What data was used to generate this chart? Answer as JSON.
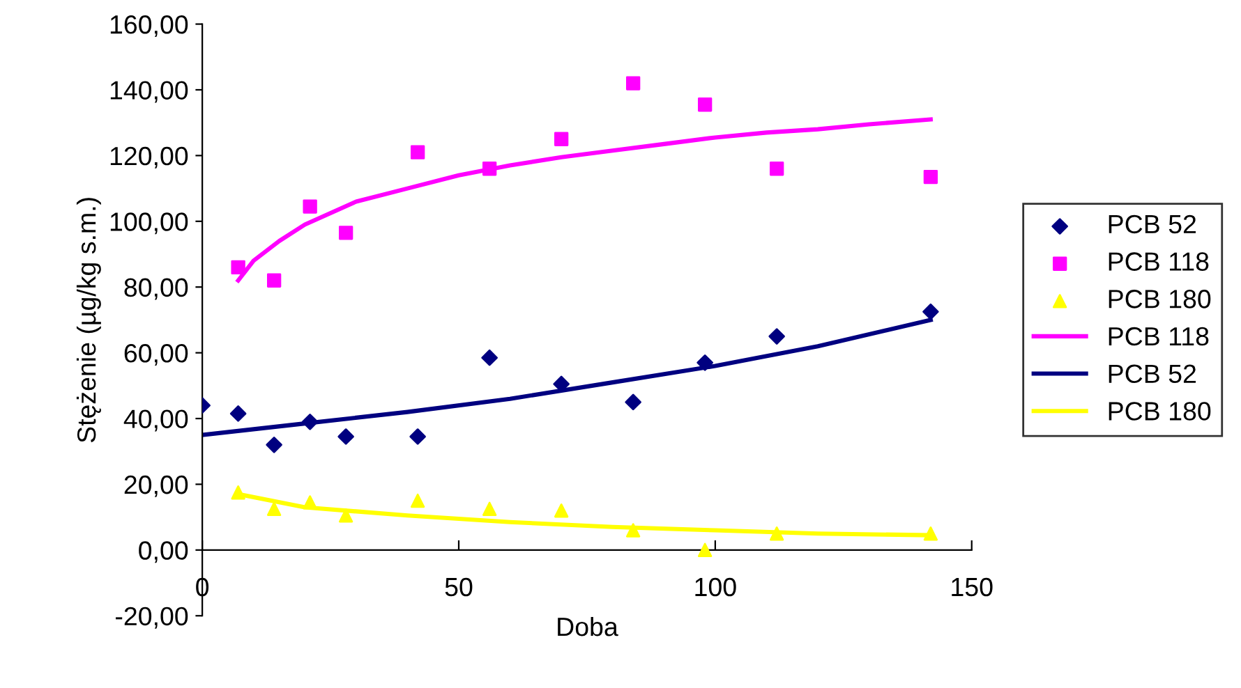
{
  "chart_data": {
    "type": "scatter",
    "xlabel": "Doba",
    "ylabel": "Stężenie (µg/kg s.m.)",
    "xlim": [
      0,
      150
    ],
    "xticks": [
      0,
      50,
      100,
      150
    ],
    "ylim": [
      -20,
      160
    ],
    "yticks": [
      {
        "value": -20,
        "label": "-20,00"
      },
      {
        "value": 0,
        "label": "0,00"
      },
      {
        "value": 20,
        "label": "20,00"
      },
      {
        "value": 40,
        "label": "40,00"
      },
      {
        "value": 60,
        "label": "60,00"
      },
      {
        "value": 80,
        "label": "80,00"
      },
      {
        "value": 100,
        "label": "100,00"
      },
      {
        "value": 120,
        "label": "120,00"
      },
      {
        "value": 140,
        "label": "140,00"
      },
      {
        "value": 160,
        "label": "160,00"
      }
    ],
    "grid": false,
    "legend": "right",
    "series": [
      {
        "name": "PCB 52",
        "marker": "diamond",
        "color": "#000080",
        "x": [
          0,
          7,
          14,
          21,
          28,
          42,
          56,
          70,
          84,
          98,
          112,
          142
        ],
        "values": [
          44,
          41.5,
          32,
          39,
          34.5,
          34.5,
          58.5,
          50.5,
          45,
          57,
          65,
          72.5
        ]
      },
      {
        "name": "PCB 118",
        "marker": "square",
        "color": "#ff00ff",
        "x": [
          7,
          14,
          21,
          28,
          42,
          56,
          70,
          84,
          98,
          112,
          142
        ],
        "values": [
          86,
          82,
          104.5,
          96.5,
          121,
          116,
          125,
          142,
          135.5,
          116,
          113.5
        ]
      },
      {
        "name": "PCB 180",
        "marker": "triangle",
        "color": "#ffff00",
        "x": [
          7,
          14,
          21,
          28,
          42,
          56,
          70,
          84,
          98,
          112,
          142
        ],
        "values": [
          17.5,
          12.5,
          14.5,
          10.5,
          15,
          12.5,
          12,
          6,
          0,
          5,
          5
        ]
      },
      {
        "name": "PCB 118",
        "type": "line",
        "color": "#ff00ff",
        "x": [
          7,
          10,
          15,
          20,
          30,
          40,
          50,
          60,
          70,
          80,
          90,
          100,
          110,
          120,
          130,
          142
        ],
        "values": [
          82,
          88,
          94,
          99,
          106,
          110,
          114,
          117,
          119.5,
          121.5,
          123.5,
          125.5,
          127,
          128,
          129.5,
          131
        ]
      },
      {
        "name": "PCB 52",
        "type": "line",
        "color": "#000080",
        "x": [
          0,
          20,
          40,
          60,
          80,
          100,
          120,
          142
        ],
        "values": [
          35,
          38.5,
          42,
          46,
          51,
          56,
          62,
          70
        ]
      },
      {
        "name": "PCB 180",
        "type": "line",
        "color": "#ffff00",
        "x": [
          7,
          20,
          40,
          60,
          80,
          100,
          120,
          142
        ],
        "values": [
          17,
          13,
          10.5,
          8.5,
          7,
          6,
          5,
          4.5
        ]
      }
    ]
  }
}
